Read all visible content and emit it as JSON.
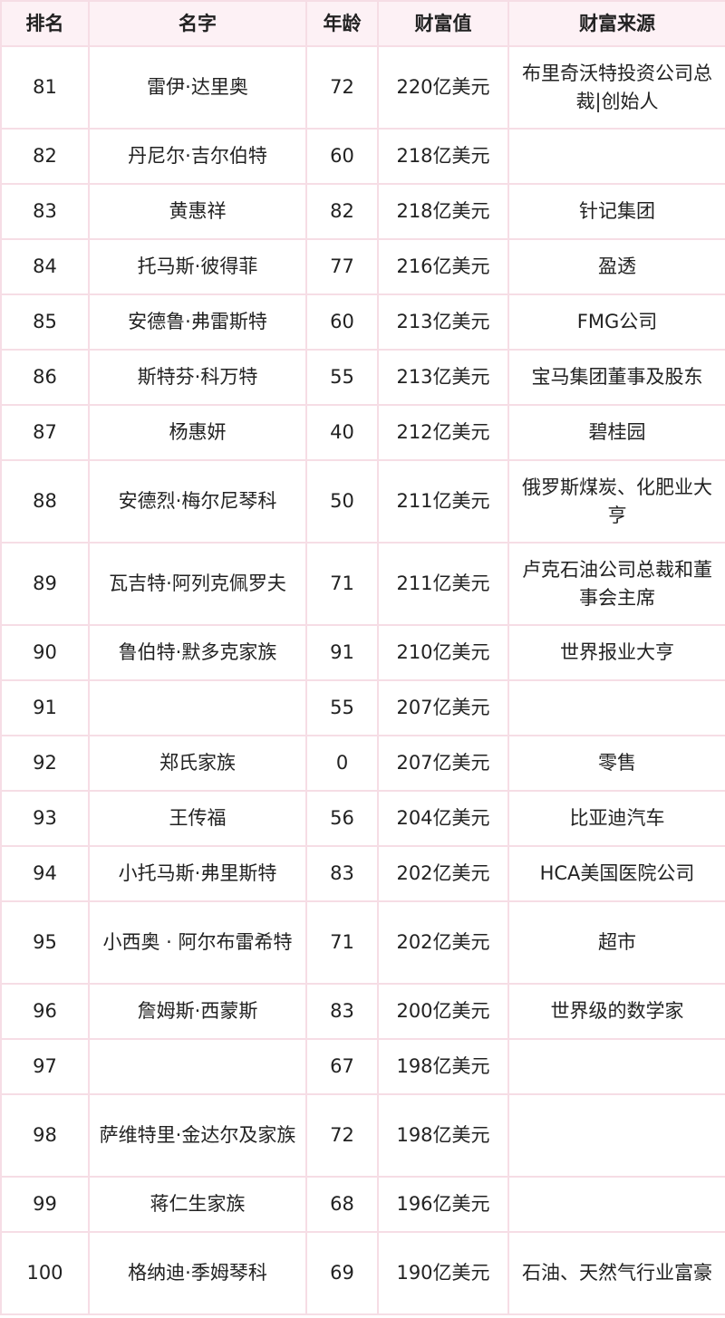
{
  "headers": [
    "排名",
    "名字",
    "年龄",
    "财富值",
    "财富来源"
  ],
  "rows": [
    {
      "rank": "81",
      "name": "雷伊·达里奥",
      "age": "72",
      "wealth": "220亿美元",
      "source": "布里奇沃特投资公司总裁|创始人"
    },
    {
      "rank": "82",
      "name": "丹尼尔·吉尔伯特",
      "age": "60",
      "wealth": "218亿美元",
      "source": ""
    },
    {
      "rank": "83",
      "name": "黄惠祥",
      "age": "82",
      "wealth": "218亿美元",
      "source": "针记集团"
    },
    {
      "rank": "84",
      "name": "托马斯·彼得菲",
      "age": "77",
      "wealth": "216亿美元",
      "source": "盈透"
    },
    {
      "rank": "85",
      "name": "安德鲁·弗雷斯特",
      "age": "60",
      "wealth": "213亿美元",
      "source": "FMG公司"
    },
    {
      "rank": "86",
      "name": "斯特芬·科万特",
      "age": "55",
      "wealth": "213亿美元",
      "source": "宝马集团董事及股东"
    },
    {
      "rank": "87",
      "name": "杨惠妍",
      "age": "40",
      "wealth": "212亿美元",
      "source": "碧桂园"
    },
    {
      "rank": "88",
      "name": "安德烈·梅尔尼琴科",
      "age": "50",
      "wealth": "211亿美元",
      "source": "俄罗斯煤炭、化肥业大亨"
    },
    {
      "rank": "89",
      "name": "瓦吉特·阿列克佩罗夫",
      "age": "71",
      "wealth": "211亿美元",
      "source": "卢克石油公司总裁和董事会主席"
    },
    {
      "rank": "90",
      "name": "鲁伯特·默多克家族",
      "age": "91",
      "wealth": "210亿美元",
      "source": "世界报业大亨"
    },
    {
      "rank": "91",
      "name": "",
      "age": "55",
      "wealth": "207亿美元",
      "source": ""
    },
    {
      "rank": "92",
      "name": "郑氏家族",
      "age": "0",
      "wealth": "207亿美元",
      "source": "零售"
    },
    {
      "rank": "93",
      "name": "王传福",
      "age": "56",
      "wealth": "204亿美元",
      "source": "比亚迪汽车"
    },
    {
      "rank": "94",
      "name": "小托马斯·弗里斯特",
      "age": "83",
      "wealth": "202亿美元",
      "source": "HCA美国医院公司"
    },
    {
      "rank": "95",
      "name": "小西奥 · 阿尔布雷希特",
      "age": "71",
      "wealth": "202亿美元",
      "source": "超市"
    },
    {
      "rank": "96",
      "name": "詹姆斯·西蒙斯",
      "age": "83",
      "wealth": "200亿美元",
      "source": "世界级的数学家"
    },
    {
      "rank": "97",
      "name": "",
      "age": "67",
      "wealth": "198亿美元",
      "source": ""
    },
    {
      "rank": "98",
      "name": "萨维特里·金达尔及家族",
      "age": "72",
      "wealth": "198亿美元",
      "source": ""
    },
    {
      "rank": "99",
      "name": "蒋仁生家族",
      "age": "68",
      "wealth": "196亿美元",
      "source": ""
    },
    {
      "rank": "100",
      "name": "格纳迪·季姆琴科",
      "age": "69",
      "wealth": "190亿美元",
      "source": "石油、天然气行业富豪"
    }
  ]
}
